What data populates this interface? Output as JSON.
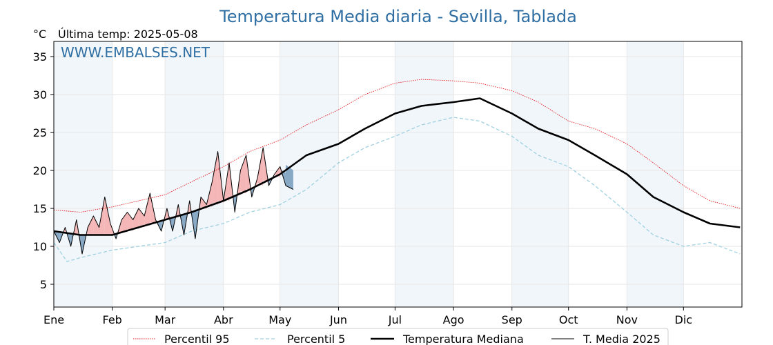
{
  "chart_data": {
    "type": "line",
    "title": "Temperatura Media diaria - Sevilla, Tablada",
    "unit_label": "°C",
    "last_temp_label": "Última temp: 2025-05-08",
    "watermark": "WWW.EMBALSES.NET",
    "x_tick_labels": [
      "Ene",
      "Feb",
      "Mar",
      "Abr",
      "May",
      "Jun",
      "Jul",
      "Ago",
      "Sep",
      "Oct",
      "Nov",
      "Dic"
    ],
    "y_ticks": [
      5,
      10,
      15,
      20,
      25,
      30,
      35
    ],
    "ylim": [
      2,
      37
    ],
    "x_range_days": [
      1,
      366
    ],
    "grid": true,
    "legend_position": "bottom-center",
    "series": [
      {
        "name": "Percentil 95",
        "style": "dotted",
        "color": "#e31a1c",
        "days": [
          1,
          15,
          32,
          46,
          60,
          74,
          91,
          105,
          121,
          135,
          152,
          166,
          182,
          196,
          213,
          227,
          244,
          258,
          274,
          288,
          305,
          319,
          335,
          349,
          365
        ],
        "values": [
          14.8,
          14.5,
          15.2,
          16.0,
          16.8,
          18.5,
          20.5,
          22.5,
          24.0,
          26.0,
          28.0,
          30.0,
          31.5,
          32.0,
          31.8,
          31.5,
          30.5,
          29.0,
          26.5,
          25.5,
          23.5,
          21.0,
          18.0,
          16.0,
          15.0
        ]
      },
      {
        "name": "Percentil 5",
        "style": "dashed",
        "color": "#9fd0e0",
        "days": [
          1,
          8,
          15,
          32,
          46,
          60,
          74,
          91,
          105,
          121,
          135,
          152,
          166,
          182,
          196,
          213,
          227,
          244,
          258,
          274,
          288,
          305,
          319,
          335,
          349,
          365
        ],
        "values": [
          10.5,
          8.0,
          8.5,
          9.5,
          10.0,
          10.5,
          12.0,
          13.0,
          14.5,
          15.5,
          17.5,
          21.0,
          23.0,
          24.5,
          26.0,
          27.0,
          26.5,
          24.5,
          22.0,
          20.5,
          18.0,
          14.5,
          11.5,
          10.0,
          10.5,
          9.0
        ]
      },
      {
        "name": "Temperatura Mediana",
        "style": "solid-thick",
        "color": "#000000",
        "days": [
          1,
          15,
          32,
          46,
          60,
          74,
          91,
          105,
          121,
          135,
          152,
          166,
          182,
          196,
          213,
          227,
          244,
          258,
          274,
          288,
          305,
          319,
          335,
          349,
          365
        ],
        "values": [
          12.0,
          11.5,
          11.5,
          12.5,
          13.5,
          14.5,
          16.0,
          17.5,
          19.5,
          22.0,
          23.5,
          25.5,
          27.5,
          28.5,
          29.0,
          29.5,
          27.5,
          25.5,
          24.0,
          22.0,
          19.5,
          16.5,
          14.5,
          13.0,
          12.5
        ]
      },
      {
        "name": "T. Media 2025",
        "style": "solid-thin",
        "color": "#000000",
        "days": [
          1,
          4,
          7,
          10,
          13,
          16,
          19,
          22,
          25,
          28,
          31,
          34,
          37,
          40,
          43,
          46,
          49,
          52,
          55,
          58,
          61,
          64,
          67,
          70,
          73,
          76,
          79,
          82,
          85,
          88,
          91,
          94,
          97,
          100,
          103,
          106,
          109,
          112,
          115,
          118,
          121,
          124,
          128
        ],
        "values": [
          12.0,
          10.5,
          12.5,
          10.0,
          13.5,
          9.0,
          12.5,
          14.0,
          12.5,
          16.5,
          13.0,
          11.0,
          13.5,
          14.5,
          13.5,
          15.0,
          14.0,
          17.0,
          13.5,
          12.0,
          15.0,
          12.0,
          15.5,
          11.5,
          16.0,
          11.0,
          16.5,
          15.5,
          18.5,
          22.5,
          16.0,
          21.0,
          14.5,
          20.0,
          22.0,
          16.5,
          19.0,
          23.0,
          18.0,
          19.5,
          20.5,
          18.0,
          17.5
        ]
      }
    ]
  }
}
